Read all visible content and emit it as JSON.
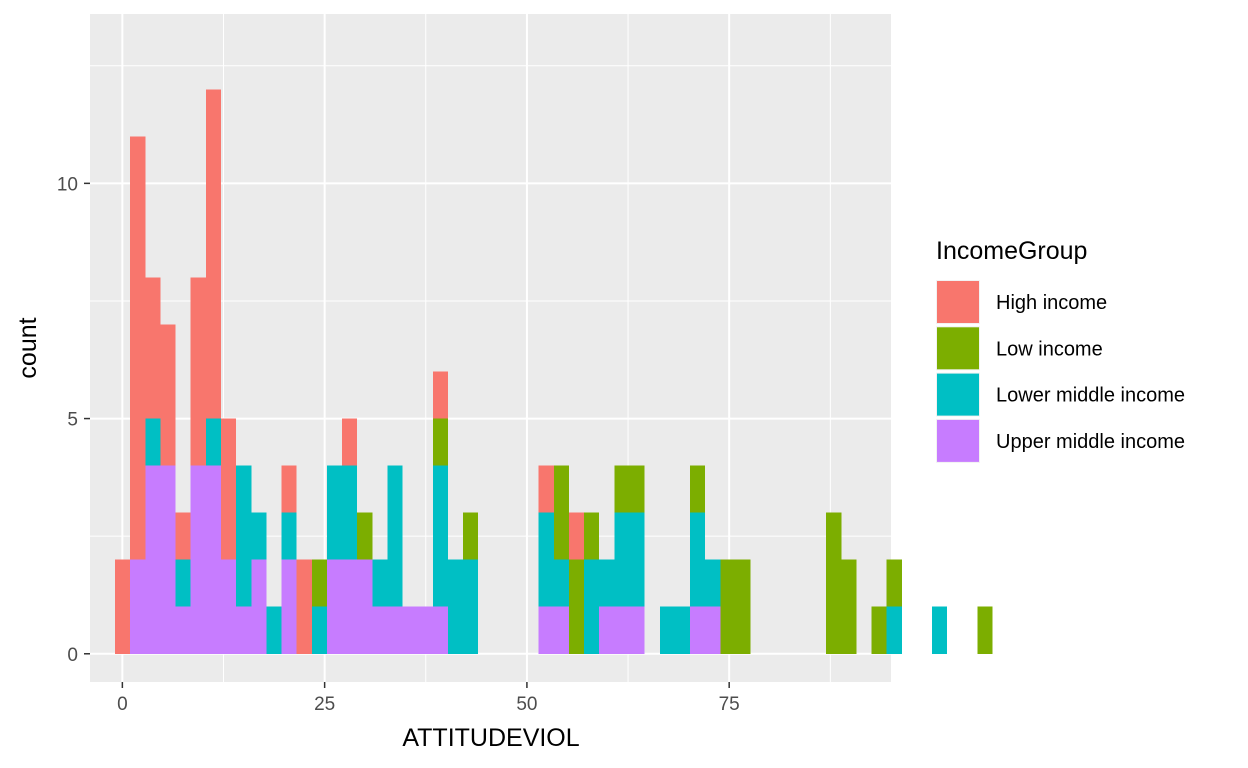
{
  "chart_data": {
    "type": "bar",
    "subtype": "stacked-histogram",
    "xlabel": "ATTITUDEVIOL",
    "ylabel": "count",
    "xlim": [
      -4,
      95
    ],
    "ylim": [
      -0.6,
      13.6
    ],
    "x_ticks": [
      0,
      25,
      50,
      75
    ],
    "y_ticks": [
      0,
      5,
      10
    ],
    "x_tick_labels": [
      "0",
      "25",
      "50",
      "75"
    ],
    "y_tick_labels": [
      "0",
      "5",
      "10"
    ],
    "grid": true,
    "legend_position": "right",
    "legend_title": "IncomeGroup",
    "bin_start": -0.9,
    "bin_width": 1.87,
    "series": [
      {
        "name": "High income",
        "color": "#F8766D",
        "values": [
          2,
          9,
          3,
          3,
          1,
          4,
          7,
          3,
          0,
          0,
          0,
          1,
          2,
          0,
          0,
          1,
          0,
          0,
          0,
          0,
          0,
          1,
          0,
          0,
          0,
          0,
          0,
          0,
          1,
          0,
          1,
          0,
          0,
          0,
          0,
          0,
          0,
          0,
          0,
          0,
          0,
          0,
          0,
          0,
          0,
          0,
          0,
          0,
          0,
          0
        ]
      },
      {
        "name": "Low income",
        "color": "#7CAE00",
        "values": [
          0,
          0,
          0,
          0,
          0,
          0,
          0,
          0,
          0,
          0,
          0,
          0,
          0,
          1,
          0,
          0,
          1,
          0,
          0,
          0,
          0,
          1,
          0,
          1,
          0,
          0,
          0,
          0,
          0,
          2,
          2,
          1,
          0,
          1,
          1,
          0,
          0,
          0,
          1,
          0,
          2,
          2,
          0,
          0,
          0,
          0,
          0,
          3,
          2,
          0,
          1,
          1,
          0,
          0,
          0,
          0,
          0,
          1,
          0
        ]
      },
      {
        "name": "Lower middle income",
        "color": "#00BFC4",
        "values": [
          0,
          0,
          1,
          0,
          1,
          0,
          1,
          0,
          3,
          1,
          1,
          1,
          0,
          1,
          2,
          2,
          0,
          1,
          3,
          0,
          0,
          3,
          2,
          2,
          0,
          0,
          0,
          0,
          2,
          1,
          0,
          2,
          1,
          2,
          2,
          0,
          1,
          1,
          2,
          1,
          0,
          0,
          0,
          0,
          0,
          0,
          0,
          0,
          0,
          0,
          0,
          1,
          0,
          0,
          1,
          0,
          0,
          0,
          0
        ]
      },
      {
        "name": "Upper middle income",
        "color": "#C77CFF",
        "values": [
          0,
          2,
          4,
          4,
          1,
          4,
          4,
          2,
          1,
          2,
          0,
          2,
          0,
          0,
          2,
          2,
          2,
          1,
          1,
          1,
          1,
          1,
          0,
          0,
          0,
          0,
          0,
          0,
          1,
          1,
          0,
          0,
          1,
          1,
          1,
          0,
          0,
          0,
          1,
          1,
          0,
          0,
          0,
          0,
          0,
          0,
          0,
          0,
          0,
          0,
          0,
          0,
          0,
          0,
          0,
          0,
          0,
          0,
          0
        ]
      }
    ]
  }
}
